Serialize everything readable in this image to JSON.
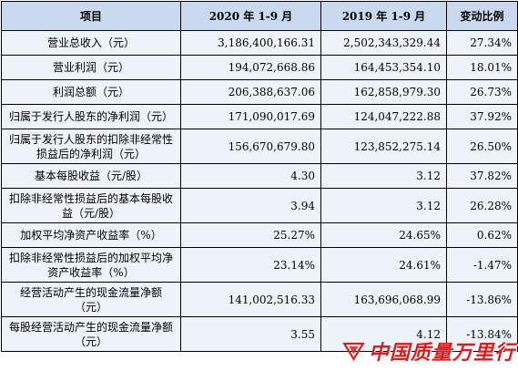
{
  "table": {
    "headers": [
      "项目",
      "2020 年 1-9 月",
      "2019 年 1-9 月",
      "变动比例"
    ],
    "rows": [
      {
        "label": "营业总收入（元）",
        "v2020": "3,186,400,166.31",
        "v2019": "2,502,343,329.44",
        "change": "27.34%"
      },
      {
        "label": "营业利润（元）",
        "v2020": "194,072,668.86",
        "v2019": "164,453,354.10",
        "change": "18.01%"
      },
      {
        "label": "利润总额（元）",
        "v2020": "206,388,637.06",
        "v2019": "162,858,979.30",
        "change": "26.73%"
      },
      {
        "label": "归属于发行人股东的净利润（元）",
        "v2020": "171,090,017.69",
        "v2019": "124,047,222.88",
        "change": "37.92%"
      },
      {
        "label": "归属于发行人股东的扣除非经常性损益后的净利润（元）",
        "v2020": "156,670,679.80",
        "v2019": "123,852,275.14",
        "change": "26.50%"
      },
      {
        "label": "基本每股收益（元/股）",
        "v2020": "4.30",
        "v2019": "3.12",
        "change": "37.82%"
      },
      {
        "label": "扣除非经常性损益后的基本每股收益（元/股）",
        "v2020": "3.94",
        "v2019": "3.12",
        "change": "26.28%"
      },
      {
        "label": "加权平均净资产收益率（%）",
        "v2020": "25.27%",
        "v2019": "24.65%",
        "change": "0.62%"
      },
      {
        "label": "扣除非经常性损益后的加权平均净资产收益率（%）",
        "v2020": "23.14%",
        "v2019": "24.61%",
        "change": "-1.47%"
      },
      {
        "label": "经营活动产生的现金流量净额（元）",
        "v2020": "141,002,516.33",
        "v2019": "163,696,068.99",
        "change": "-13.86%"
      },
      {
        "label": "每股经营活动产生的现金流量净额（元）",
        "v2020": "3.55",
        "v2019": "4.12",
        "change": "-13.84%"
      }
    ]
  },
  "watermark": {
    "text": "中国质量万里行",
    "color": "#d81e1e"
  }
}
